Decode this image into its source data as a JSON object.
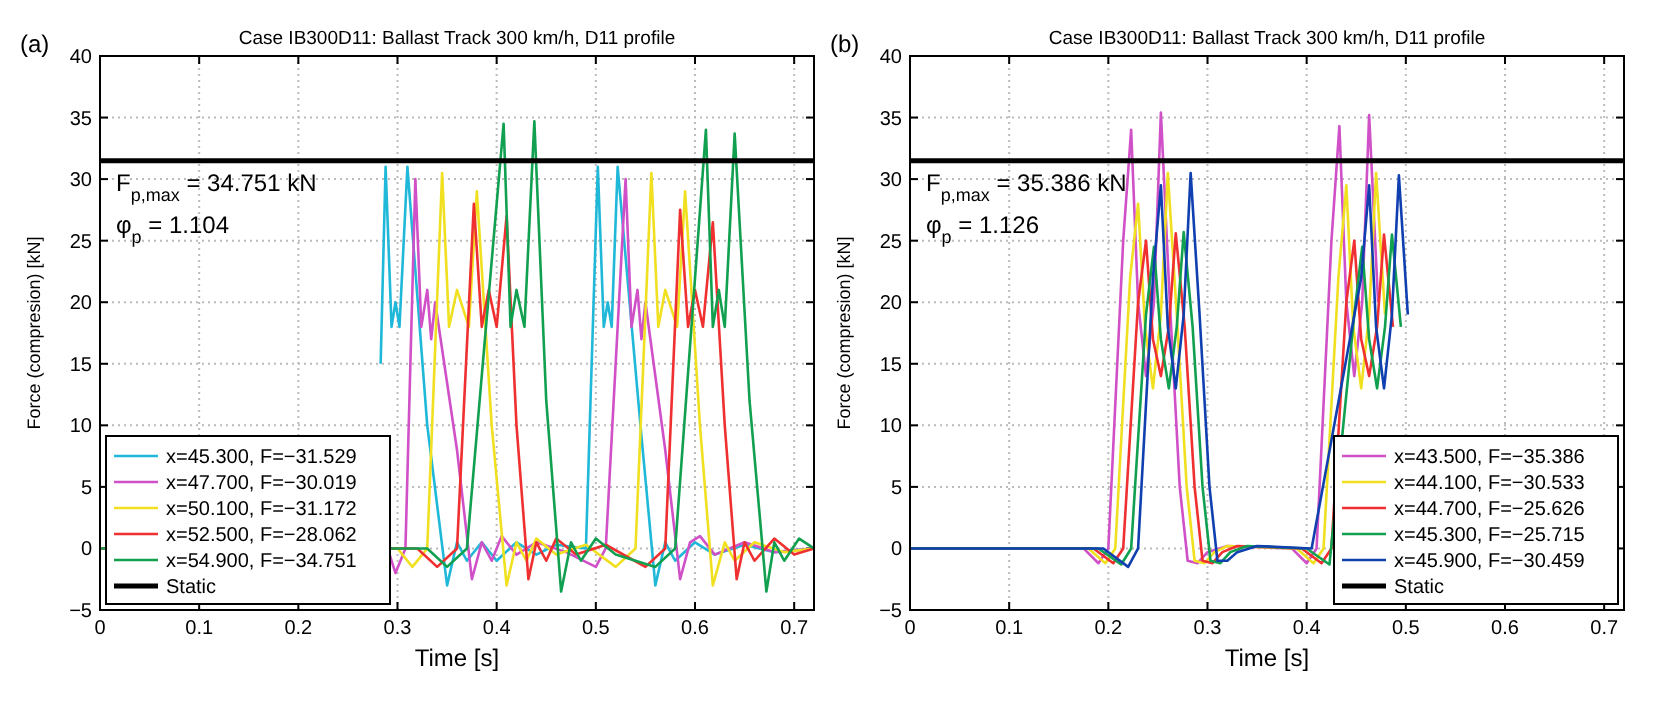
{
  "chart_data": [
    {
      "type": "line",
      "title": "Case IB300D11: Ballast Track 300 km/h,  D11 profile",
      "xlabel": "Time [s]",
      "ylabel": "Force (compresion) [kN]",
      "xlim": [
        0,
        0.72
      ],
      "ylim": [
        -5,
        40
      ],
      "xticks": [
        0,
        0.1,
        0.2,
        0.3,
        0.4,
        0.5,
        0.6,
        0.7
      ],
      "yticks": [
        -5,
        0,
        5,
        10,
        15,
        20,
        25,
        30,
        35,
        40
      ],
      "grid": true,
      "legend": "bottom left",
      "line_style": "solid",
      "annotations": [
        "(a)",
        "F$_{p,max}$ =  34.751 kN",
        "φ$_{p}$ = 1.104"
      ],
      "ref_lines": [
        {
          "axis": "y",
          "value": 31.5,
          "label": "Static",
          "color": "#000000"
        }
      ],
      "series": [
        {
          "name": "x=45.300, F=−31.529",
          "color": "#1fb8d8",
          "x": [
            0.283,
            0.288,
            0.294,
            0.298,
            0.302,
            0.31,
            0.33,
            0.35,
            0.36,
            0.37,
            0.385,
            0.4,
            0.42,
            0.44,
            0.46,
            0.49,
            0.502,
            0.508,
            0.512,
            0.516,
            0.522,
            0.545,
            0.56,
            0.57,
            0.58,
            0.6,
            0.62,
            0.65,
            0.68,
            0.72
          ],
          "values": [
            15,
            31,
            18,
            20,
            18,
            31,
            10,
            -3,
            0.5,
            -1,
            0.5,
            -1,
            0.5,
            -0.5,
            0.3,
            0,
            31,
            18,
            20,
            18,
            31,
            10,
            -3,
            0.5,
            -1,
            0.5,
            -0.5,
            0.3,
            -0.3,
            0
          ]
        },
        {
          "name": "x=47.700, F=−30.019",
          "color": "#d050c8",
          "x": [
            0,
            0.29,
            0.298,
            0.308,
            0.318,
            0.324,
            0.33,
            0.334,
            0.338,
            0.36,
            0.375,
            0.385,
            0.395,
            0.405,
            0.42,
            0.44,
            0.47,
            0.5,
            0.51,
            0.53,
            0.536,
            0.542,
            0.546,
            0.55,
            0.57,
            0.585,
            0.595,
            0.605,
            0.62,
            0.65,
            0.68,
            0.72
          ],
          "values": [
            0,
            0,
            -2,
            0,
            30,
            18,
            21,
            17,
            20,
            8,
            -2.5,
            0.5,
            -1,
            1,
            -0.5,
            0.5,
            -0.3,
            -1.5,
            0,
            30,
            18,
            21,
            17,
            20,
            8,
            -2.5,
            0.5,
            1,
            -0.5,
            0.5,
            -0.3,
            0
          ]
        },
        {
          "name": "x=50.100, F=−31.172",
          "color": "#f0e020",
          "x": [
            0,
            0.3,
            0.315,
            0.33,
            0.345,
            0.352,
            0.36,
            0.372,
            0.38,
            0.395,
            0.41,
            0.42,
            0.43,
            0.44,
            0.46,
            0.49,
            0.52,
            0.54,
            0.556,
            0.563,
            0.57,
            0.582,
            0.59,
            0.605,
            0.618,
            0.63,
            0.64,
            0.66,
            0.69,
            0.72
          ],
          "values": [
            0,
            0,
            -1.5,
            0,
            30.5,
            18,
            21,
            18,
            29,
            10,
            -3,
            0.5,
            -1,
            0.8,
            -0.5,
            0.3,
            -1.5,
            0,
            30.5,
            18,
            21,
            18,
            29,
            10,
            -3,
            0.5,
            -1,
            0.5,
            -0.3,
            0
          ]
        },
        {
          "name": "x=52.500, F=−28.062",
          "color": "#f03030",
          "x": [
            0,
            0.32,
            0.34,
            0.36,
            0.377,
            0.385,
            0.392,
            0.4,
            0.41,
            0.42,
            0.432,
            0.44,
            0.45,
            0.46,
            0.48,
            0.51,
            0.55,
            0.57,
            0.585,
            0.593,
            0.6,
            0.608,
            0.618,
            0.63,
            0.642,
            0.65,
            0.66,
            0.68,
            0.7,
            0.72
          ],
          "values": [
            0,
            0,
            -1.5,
            0,
            28,
            18,
            21,
            18,
            27,
            10,
            -2.5,
            0.5,
            -1,
            0.8,
            -0.5,
            0.3,
            -1.5,
            0,
            27.5,
            18,
            21,
            18,
            26.5,
            10,
            -2.5,
            0.5,
            -1,
            0.8,
            -0.5,
            0
          ]
        },
        {
          "name": "x=54.900, F=−34.751",
          "color": "#10a050",
          "x": [
            0,
            0.33,
            0.35,
            0.37,
            0.386,
            0.407,
            0.414,
            0.42,
            0.428,
            0.438,
            0.45,
            0.465,
            0.475,
            0.485,
            0.5,
            0.52,
            0.56,
            0.58,
            0.611,
            0.618,
            0.624,
            0.63,
            0.64,
            0.655,
            0.672,
            0.68,
            0.69,
            0.705,
            0.72
          ],
          "values": [
            0,
            0,
            -1.5,
            0,
            15,
            34.5,
            18,
            21,
            18,
            34.7,
            12,
            -3.5,
            0.5,
            -1,
            0.8,
            -0.5,
            -1.5,
            0,
            34,
            18,
            21,
            18,
            33.7,
            12,
            -3.5,
            0.5,
            -1,
            0.8,
            0
          ]
        }
      ]
    },
    {
      "type": "line",
      "title": "Case IB300D11: Ballast Track 300 km/h, D11 profile",
      "xlabel": "Time [s]",
      "ylabel": "Force (compresion) [kN]",
      "xlim": [
        0,
        0.72
      ],
      "ylim": [
        -5,
        40
      ],
      "xticks": [
        0,
        0.1,
        0.2,
        0.3,
        0.4,
        0.5,
        0.6,
        0.7
      ],
      "yticks": [
        -5,
        0,
        5,
        10,
        15,
        20,
        25,
        30,
        35,
        40
      ],
      "grid": true,
      "legend": "bottom right",
      "line_style": "solid",
      "annotations": [
        "(b)",
        "F$_{p,max}$ =  35.386 kN",
        "φ$_{p}$ = 1.126"
      ],
      "ref_lines": [
        {
          "axis": "y",
          "value": 31.5,
          "label": "Static",
          "color": "#000000"
        }
      ],
      "series": [
        {
          "name": "x=43.500, F=−35.386",
          "color": "#d050c8",
          "x": [
            0,
            0.175,
            0.19,
            0.2,
            0.215,
            0.223,
            0.23,
            0.238,
            0.246,
            0.253,
            0.262,
            0.272,
            0.28,
            0.29,
            0.3,
            0.32,
            0.385,
            0.4,
            0.41,
            0.425,
            0.433,
            0.44,
            0.448,
            0.456,
            0.463,
            0.472
          ],
          "values": [
            0,
            0,
            -1.2,
            0,
            25,
            34,
            20,
            14,
            20,
            35.4,
            20,
            5,
            -1,
            -1.2,
            -0.3,
            0.2,
            0,
            -1.2,
            0,
            25,
            34.3,
            20,
            14,
            20,
            35.2,
            20
          ]
        },
        {
          "name": "x=44.100, F=−30.533",
          "color": "#f0e020",
          "x": [
            0,
            0.18,
            0.197,
            0.207,
            0.222,
            0.23,
            0.237,
            0.245,
            0.253,
            0.26,
            0.269,
            0.279,
            0.287,
            0.297,
            0.307,
            0.32,
            0.39,
            0.407,
            0.417,
            0.432,
            0.44,
            0.447,
            0.455,
            0.463,
            0.47,
            0.479
          ],
          "values": [
            0,
            0,
            -1.2,
            0,
            22,
            28,
            18,
            13,
            19,
            30.5,
            19,
            5,
            -1,
            -1.2,
            -0.3,
            0.2,
            0,
            -1.2,
            0,
            22,
            29.5,
            18,
            13,
            19,
            30.5,
            19
          ]
        },
        {
          "name": "x=44.700, F=−25.626",
          "color": "#f03030",
          "x": [
            0,
            0.185,
            0.205,
            0.215,
            0.23,
            0.238,
            0.245,
            0.253,
            0.261,
            0.268,
            0.277,
            0.287,
            0.295,
            0.305,
            0.315,
            0.33,
            0.395,
            0.415,
            0.425,
            0.44,
            0.448,
            0.455,
            0.463,
            0.471,
            0.478,
            0.487
          ],
          "values": [
            0,
            0,
            -1.2,
            0,
            20,
            25,
            17,
            14,
            18,
            25.6,
            18,
            5,
            -1,
            -1.2,
            -0.3,
            0.2,
            0,
            -1.2,
            0,
            20,
            25,
            17,
            14,
            18,
            25.5,
            18
          ]
        },
        {
          "name": "x=45.300, F=−25.715",
          "color": "#10a050",
          "x": [
            0,
            0.19,
            0.213,
            0.223,
            0.238,
            0.246,
            0.253,
            0.261,
            0.269,
            0.276,
            0.285,
            0.295,
            0.303,
            0.313,
            0.323,
            0.34,
            0.4,
            0.423,
            0.448,
            0.456,
            0.463,
            0.471,
            0.479,
            0.486,
            0.495
          ],
          "values": [
            0,
            0,
            -1.3,
            0,
            19,
            24.5,
            17,
            13,
            18,
            25.7,
            18,
            5,
            -1,
            -1.2,
            -0.3,
            0.2,
            0,
            -1.3,
            19,
            24.5,
            17,
            13,
            18,
            25.5,
            18
          ]
        },
        {
          "name": "x=45.900, F=−30.459",
          "color": "#1040b0",
          "x": [
            0,
            0.195,
            0.22,
            0.23,
            0.245,
            0.253,
            0.26,
            0.268,
            0.276,
            0.283,
            0.292,
            0.302,
            0.31,
            0.32,
            0.33,
            0.35,
            0.405,
            0.455,
            0.463,
            0.47,
            0.478,
            0.486,
            0.493,
            0.502
          ],
          "values": [
            0,
            0,
            -1.5,
            0,
            22,
            29.5,
            18,
            13,
            19,
            30.5,
            19,
            5,
            -1,
            -1,
            -0.3,
            0.2,
            0,
            22,
            29.5,
            18,
            13,
            19,
            30.3,
            19
          ]
        }
      ]
    }
  ]
}
